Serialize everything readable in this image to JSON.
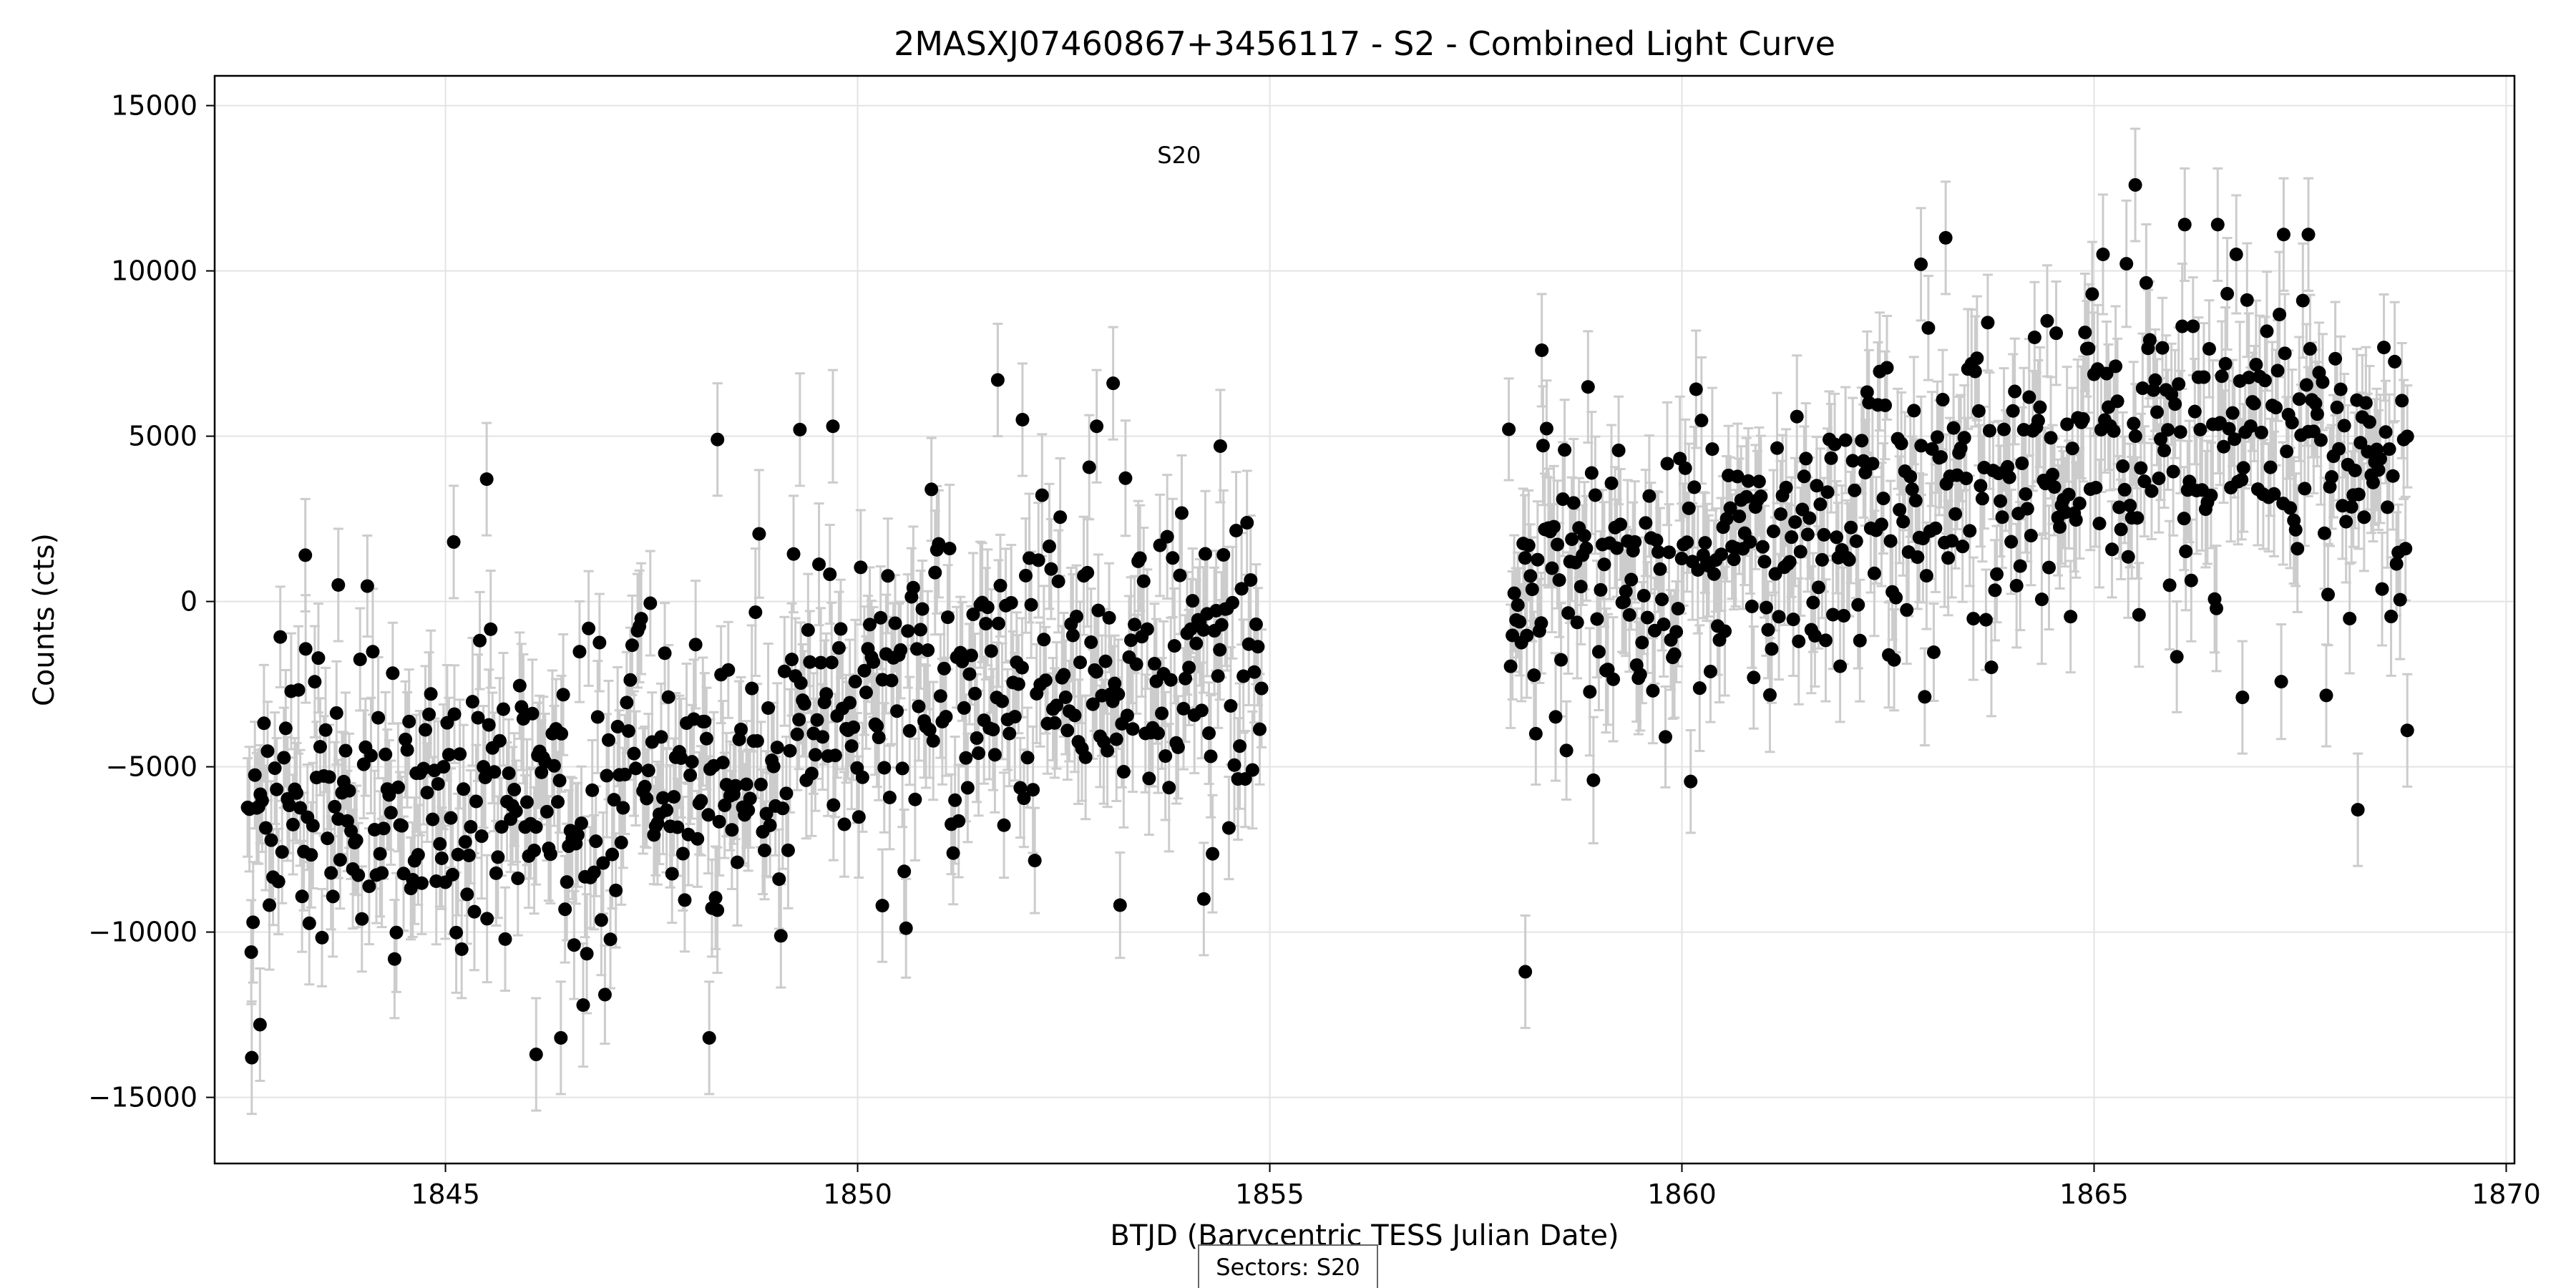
{
  "chart_data": {
    "type": "scatter",
    "title": "2MASXJ07460867+3456117 - S2 - Combined Light Curve",
    "xlabel": "BTJD (Barycentric TESS Julian Date)",
    "ylabel": "Counts (cts)",
    "xlim": [
      1842.2,
      1870.1
    ],
    "ylim": [
      -17000,
      15900
    ],
    "xticks": [
      1845,
      1850,
      1855,
      1860,
      1865,
      1870
    ],
    "yticks": [
      15000,
      10000,
      5000,
      0,
      -5000,
      -10000,
      -15000
    ],
    "xtick_labels": [
      "1845",
      "1850",
      "1855",
      "1860",
      "1865",
      "1870"
    ],
    "ytick_labels": [
      "15000",
      "10000",
      "5000",
      "0",
      "−5000",
      "−10000",
      "−15000"
    ],
    "grid": true,
    "sector_annotation": {
      "text": "S20",
      "x": 1853.9,
      "y": 13500
    },
    "footer_text": "Sectors: S20",
    "marker_color": "#000000",
    "errorbar_color": "#cccccc",
    "typical_error": 1700,
    "segments": [
      {
        "x_range": [
          1842.6,
          1854.9
        ],
        "anchors": [
          [
            1842.6,
            -6500
          ],
          [
            1845,
            -6200
          ],
          [
            1848.5,
            -5200
          ],
          [
            1850.5,
            -2300
          ],
          [
            1852.5,
            -1800
          ],
          [
            1854.9,
            -1700
          ]
        ],
        "scatter": 2400,
        "n_points": 560,
        "notable_points": [
          {
            "x": 1842.65,
            "y": -13800
          },
          {
            "x": 1842.75,
            "y": -12800
          },
          {
            "x": 1843.3,
            "y": 1400
          },
          {
            "x": 1843.7,
            "y": 500
          },
          {
            "x": 1845.1,
            "y": 1800
          },
          {
            "x": 1845.5,
            "y": 3700
          },
          {
            "x": 1846.1,
            "y": -13700
          },
          {
            "x": 1846.4,
            "y": -13200
          },
          {
            "x": 1848.2,
            "y": -13200
          },
          {
            "x": 1848.3,
            "y": 4900
          },
          {
            "x": 1849.3,
            "y": 5200
          },
          {
            "x": 1849.7,
            "y": 5300
          },
          {
            "x": 1850.3,
            "y": -9200
          },
          {
            "x": 1851.7,
            "y": 6700
          },
          {
            "x": 1852.0,
            "y": 5500
          },
          {
            "x": 1852.9,
            "y": 5300
          },
          {
            "x": 1853.1,
            "y": 6600
          },
          {
            "x": 1854.2,
            "y": -9000
          },
          {
            "x": 1854.4,
            "y": 4700
          }
        ]
      },
      {
        "x_range": [
          1857.9,
          1868.8
        ],
        "anchors": [
          [
            1857.9,
            600
          ],
          [
            1860,
            900
          ],
          [
            1862.5,
            2600
          ],
          [
            1865,
            4500
          ],
          [
            1867,
            4700
          ],
          [
            1868.8,
            3800
          ]
        ],
        "scatter": 2300,
        "n_points": 500,
        "notable_points": [
          {
            "x": 1858.1,
            "y": -11200
          },
          {
            "x": 1858.3,
            "y": 7600
          },
          {
            "x": 1862.9,
            "y": 10200
          },
          {
            "x": 1863.2,
            "y": 11000
          },
          {
            "x": 1865.5,
            "y": 12600
          },
          {
            "x": 1866.1,
            "y": 11400
          },
          {
            "x": 1866.5,
            "y": 11400
          },
          {
            "x": 1867.3,
            "y": 11100
          },
          {
            "x": 1867.6,
            "y": 11100
          },
          {
            "x": 1866.8,
            "y": -2900
          },
          {
            "x": 1868.2,
            "y": -6300
          },
          {
            "x": 1868.8,
            "y": -3900
          }
        ]
      }
    ]
  }
}
